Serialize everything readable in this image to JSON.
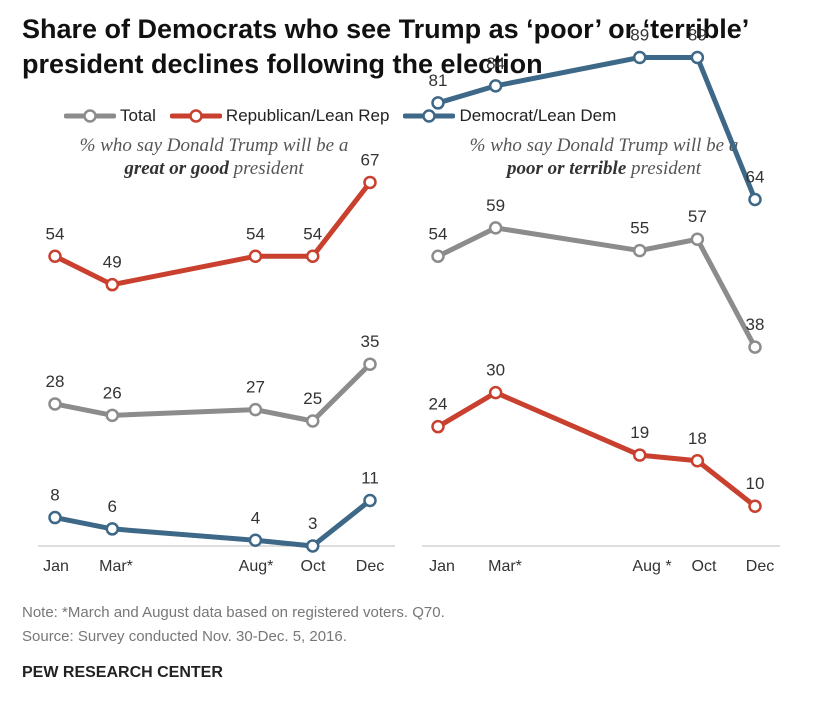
{
  "title": "Share of Democrats who see Trump as ‘poor’ or ‘terrible’ president declines following the election",
  "legend": [
    {
      "name": "Total",
      "color": "#8c8c8c"
    },
    {
      "name": "Republican/Lean Rep",
      "color": "#c9402f"
    },
    {
      "name": "Democrat/Lean Dem",
      "color": "#3e6887"
    }
  ],
  "left_subtitle": {
    "pre": "% who say Donald Trump will be a",
    "bold": "great or good",
    "post": "president"
  },
  "right_subtitle": {
    "pre": "% who say Donald Trump will be a",
    "bold": "poor or terrible",
    "post": "president"
  },
  "chart_data": [
    {
      "type": "line",
      "panel": "left",
      "categories": [
        "Jan",
        "Mar*",
        "Aug*",
        "Oct",
        "Dec"
      ],
      "series": [
        {
          "name": "Republican/Lean Rep",
          "color": "#c9402f",
          "values": [
            54,
            49,
            54,
            54,
            67
          ]
        },
        {
          "name": "Total",
          "color": "#8c8c8c",
          "values": [
            28,
            26,
            27,
            25,
            35
          ]
        },
        {
          "name": "Democrat/Lean Dem",
          "color": "#3e6887",
          "values": [
            8,
            6,
            4,
            3,
            11
          ]
        }
      ],
      "ylim": [
        0,
        100
      ]
    },
    {
      "type": "line",
      "panel": "right",
      "categories": [
        "Jan",
        "Mar*",
        "Aug *",
        "Oct",
        "Dec"
      ],
      "series": [
        {
          "name": "Democrat/Lean Dem",
          "color": "#3e6887",
          "values": [
            81,
            84,
            89,
            89,
            64
          ]
        },
        {
          "name": "Total",
          "color": "#8c8c8c",
          "values": [
            54,
            59,
            55,
            57,
            38
          ]
        },
        {
          "name": "Republican/Lean Rep",
          "color": "#c9402f",
          "values": [
            24,
            30,
            19,
            18,
            10
          ]
        }
      ],
      "ylim": [
        0,
        100
      ]
    }
  ],
  "note": "Note: *March and August data based on registered voters. Q70.",
  "source": "Source: Survey conducted Nov. 30-Dec. 5, 2016.",
  "brand": "PEW RESEARCH CENTER"
}
